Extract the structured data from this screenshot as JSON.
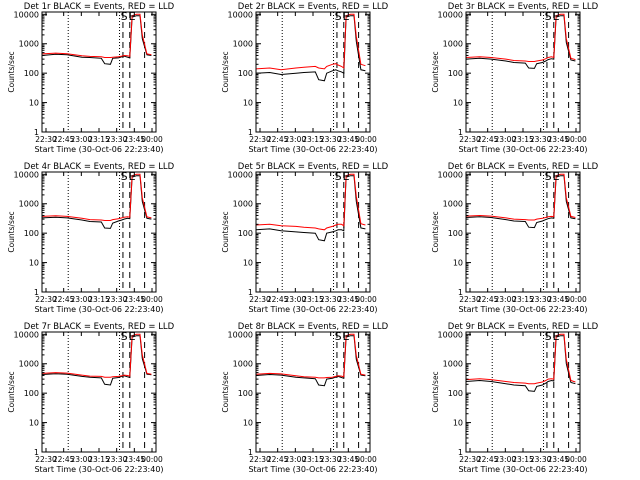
{
  "chart_data": [
    {
      "type": "line",
      "title": "Det 1r BLACK = Events, RED = LLD",
      "xlabel": "Start Time (30-Oct-06 22:23:40)",
      "ylabel": "Counts/sec",
      "x_ticks": [
        "22:30",
        "22:45",
        "23:00",
        "23:15",
        "23:30",
        "23:45",
        "00:00"
      ],
      "y_ticks": [
        "1",
        "10",
        "100",
        "1000",
        "10000"
      ],
      "ylim": [
        1,
        12000
      ],
      "yscale": "log",
      "markers": [
        "S",
        "E"
      ],
      "series": [
        {
          "color": "#000000",
          "x": [
            0,
            0.12,
            0.22,
            0.35,
            0.42,
            0.52,
            0.55,
            0.6,
            0.62,
            0.67,
            0.7,
            0.72,
            0.75,
            0.77,
            0.79,
            0.83,
            0.86,
            0.88,
            0.92,
            0.96
          ],
          "y": [
            400,
            440,
            420,
            350,
            340,
            320,
            210,
            200,
            320,
            330,
            360,
            380,
            350,
            330,
            8000,
            9000,
            9000,
            1500,
            420,
            400
          ]
        },
        {
          "color": "#ff0000",
          "x": [
            0,
            0.12,
            0.22,
            0.35,
            0.42,
            0.52,
            0.55,
            0.6,
            0.62,
            0.67,
            0.7,
            0.72,
            0.75,
            0.77,
            0.79,
            0.83,
            0.86,
            0.88,
            0.92,
            0.96
          ],
          "y": [
            450,
            480,
            460,
            390,
            370,
            360,
            340,
            340,
            350,
            360,
            380,
            400,
            390,
            370,
            9000,
            10000,
            10000,
            2000,
            450,
            420
          ]
        }
      ]
    },
    {
      "type": "line",
      "title": "Det 2r BLACK = Events, RED = LLD",
      "xlabel": "Start Time (30-Oct-06 22:23:40)",
      "ylabel": "Counts/sec",
      "x_ticks": [
        "22:30",
        "22:45",
        "23:00",
        "23:15",
        "23:30",
        "23:45",
        "00:00"
      ],
      "y_ticks": [
        "1",
        "10",
        "100",
        "1000",
        "10000"
      ],
      "ylim": [
        1,
        12000
      ],
      "yscale": "log",
      "markers": [
        "S",
        "E"
      ],
      "series": [
        {
          "color": "#000000",
          "x": [
            0,
            0.12,
            0.22,
            0.35,
            0.42,
            0.52,
            0.55,
            0.6,
            0.62,
            0.67,
            0.7,
            0.72,
            0.75,
            0.77,
            0.79,
            0.83,
            0.86,
            0.88,
            0.92,
            0.96
          ],
          "y": [
            100,
            105,
            90,
            100,
            105,
            110,
            60,
            55,
            100,
            120,
            130,
            120,
            110,
            100,
            8000,
            9000,
            9000,
            1200,
            130,
            120
          ]
        },
        {
          "color": "#ff0000",
          "x": [
            0,
            0.12,
            0.22,
            0.35,
            0.42,
            0.52,
            0.55,
            0.6,
            0.62,
            0.67,
            0.7,
            0.72,
            0.75,
            0.77,
            0.79,
            0.83,
            0.86,
            0.88,
            0.92,
            0.96
          ],
          "y": [
            140,
            150,
            130,
            150,
            160,
            170,
            150,
            140,
            170,
            200,
            210,
            190,
            170,
            150,
            9000,
            10000,
            10000,
            1800,
            200,
            180
          ]
        }
      ]
    },
    {
      "type": "line",
      "title": "Det 3r BLACK = Events, RED = LLD",
      "xlabel": "Start Time (30-Oct-06 22:23:40)",
      "ylabel": "Counts/sec",
      "x_ticks": [
        "22:30",
        "22:45",
        "23:00",
        "23:15",
        "23:30",
        "23:45",
        "00:00"
      ],
      "y_ticks": [
        "1",
        "10",
        "100",
        "1000",
        "10000"
      ],
      "ylim": [
        1,
        12000
      ],
      "yscale": "log",
      "markers": [
        "S",
        "E"
      ],
      "series": [
        {
          "color": "#000000",
          "x": [
            0,
            0.12,
            0.22,
            0.35,
            0.42,
            0.52,
            0.55,
            0.6,
            0.62,
            0.67,
            0.7,
            0.72,
            0.75,
            0.77,
            0.79,
            0.83,
            0.86,
            0.88,
            0.92,
            0.96
          ],
          "y": [
            300,
            320,
            300,
            260,
            230,
            220,
            150,
            145,
            210,
            230,
            260,
            290,
            310,
            300,
            8000,
            9000,
            9000,
            1100,
            280,
            260
          ]
        },
        {
          "color": "#ff0000",
          "x": [
            0,
            0.12,
            0.22,
            0.35,
            0.42,
            0.52,
            0.55,
            0.6,
            0.62,
            0.67,
            0.7,
            0.72,
            0.75,
            0.77,
            0.79,
            0.83,
            0.86,
            0.88,
            0.92,
            0.96
          ],
          "y": [
            340,
            360,
            340,
            300,
            270,
            260,
            250,
            250,
            260,
            280,
            310,
            340,
            360,
            340,
            9000,
            10000,
            10000,
            1500,
            320,
            290
          ]
        }
      ]
    },
    {
      "type": "line",
      "title": "Det 4r BLACK = Events, RED = LLD",
      "xlabel": "Start Time (30-Oct-06 22:23:40)",
      "ylabel": "Counts/sec",
      "x_ticks": [
        "22:30",
        "22:45",
        "23:00",
        "23:15",
        "23:30",
        "23:45",
        "00:00"
      ],
      "y_ticks": [
        "1",
        "10",
        "100",
        "1000",
        "10000"
      ],
      "ylim": [
        1,
        12000
      ],
      "yscale": "log",
      "markers": [
        "S",
        "E"
      ],
      "series": [
        {
          "color": "#000000",
          "x": [
            0,
            0.12,
            0.22,
            0.35,
            0.42,
            0.52,
            0.55,
            0.6,
            0.62,
            0.67,
            0.7,
            0.72,
            0.75,
            0.77,
            0.79,
            0.83,
            0.86,
            0.88,
            0.92,
            0.96
          ],
          "y": [
            330,
            350,
            330,
            280,
            250,
            240,
            150,
            145,
            220,
            260,
            280,
            300,
            320,
            310,
            8000,
            9000,
            9000,
            1200,
            320,
            300
          ]
        },
        {
          "color": "#ff0000",
          "x": [
            0,
            0.12,
            0.22,
            0.35,
            0.42,
            0.52,
            0.55,
            0.6,
            0.62,
            0.67,
            0.7,
            0.72,
            0.75,
            0.77,
            0.79,
            0.83,
            0.86,
            0.88,
            0.92,
            0.96
          ],
          "y": [
            370,
            390,
            370,
            320,
            290,
            280,
            270,
            270,
            290,
            310,
            330,
            350,
            360,
            350,
            9000,
            10000,
            10000,
            1600,
            360,
            330
          ]
        }
      ]
    },
    {
      "type": "line",
      "title": "Det 5r BLACK = Events, RED = LLD",
      "xlabel": "Start Time (30-Oct-06 22:23:40)",
      "ylabel": "Counts/sec",
      "x_ticks": [
        "22:30",
        "22:45",
        "23:00",
        "23:15",
        "23:30",
        "23:45",
        "00:00"
      ],
      "y_ticks": [
        "1",
        "10",
        "100",
        "1000",
        "10000"
      ],
      "ylim": [
        1,
        12000
      ],
      "yscale": "log",
      "markers": [
        "S",
        "E"
      ],
      "series": [
        {
          "color": "#000000",
          "x": [
            0,
            0.12,
            0.22,
            0.35,
            0.42,
            0.52,
            0.55,
            0.6,
            0.62,
            0.67,
            0.7,
            0.72,
            0.75,
            0.77,
            0.79,
            0.83,
            0.86,
            0.88,
            0.92,
            0.96
          ],
          "y": [
            130,
            140,
            120,
            110,
            105,
            100,
            60,
            55,
            100,
            110,
            120,
            130,
            130,
            120,
            8000,
            9000,
            9000,
            1200,
            150,
            140
          ]
        },
        {
          "color": "#ff0000",
          "x": [
            0,
            0.12,
            0.22,
            0.35,
            0.42,
            0.52,
            0.55,
            0.6,
            0.62,
            0.67,
            0.7,
            0.72,
            0.75,
            0.77,
            0.79,
            0.83,
            0.86,
            0.88,
            0.92,
            0.96
          ],
          "y": [
            190,
            200,
            180,
            170,
            160,
            150,
            140,
            130,
            150,
            170,
            190,
            200,
            200,
            180,
            9000,
            10000,
            10000,
            1800,
            210,
            190
          ]
        }
      ]
    },
    {
      "type": "line",
      "title": "Det 6r BLACK = Events, RED = LLD",
      "xlabel": "Start Time (30-Oct-06 22:23:40)",
      "ylabel": "Counts/sec",
      "x_ticks": [
        "22:30",
        "22:45",
        "23:00",
        "23:15",
        "23:30",
        "23:45",
        "00:00"
      ],
      "y_ticks": [
        "1",
        "10",
        "100",
        "1000",
        "10000"
      ],
      "ylim": [
        1,
        12000
      ],
      "yscale": "log",
      "markers": [
        "S",
        "E"
      ],
      "series": [
        {
          "color": "#000000",
          "x": [
            0,
            0.12,
            0.22,
            0.35,
            0.42,
            0.52,
            0.55,
            0.6,
            0.62,
            0.67,
            0.7,
            0.72,
            0.75,
            0.77,
            0.79,
            0.83,
            0.86,
            0.88,
            0.92,
            0.96
          ],
          "y": [
            340,
            360,
            340,
            290,
            260,
            250,
            160,
            155,
            230,
            260,
            290,
            310,
            330,
            320,
            8000,
            9000,
            9000,
            1200,
            330,
            310
          ]
        },
        {
          "color": "#ff0000",
          "x": [
            0,
            0.12,
            0.22,
            0.35,
            0.42,
            0.52,
            0.55,
            0.6,
            0.62,
            0.67,
            0.7,
            0.72,
            0.75,
            0.77,
            0.79,
            0.83,
            0.86,
            0.88,
            0.92,
            0.96
          ],
          "y": [
            380,
            400,
            380,
            330,
            300,
            290,
            280,
            280,
            300,
            320,
            340,
            360,
            370,
            360,
            9000,
            10000,
            10000,
            1600,
            370,
            340
          ]
        }
      ]
    },
    {
      "type": "line",
      "title": "Det 7r BLACK = Events, RED = LLD",
      "xlabel": "Start Time (30-Oct-06 22:23:40)",
      "ylabel": "Counts/sec",
      "x_ticks": [
        "22:30",
        "22:45",
        "23:00",
        "23:15",
        "23:30",
        "23:45",
        "00:00"
      ],
      "y_ticks": [
        "1",
        "10",
        "100",
        "1000",
        "10000"
      ],
      "ylim": [
        1,
        12000
      ],
      "yscale": "log",
      "markers": [
        "S",
        "E"
      ],
      "series": [
        {
          "color": "#000000",
          "x": [
            0,
            0.12,
            0.22,
            0.35,
            0.42,
            0.52,
            0.55,
            0.6,
            0.62,
            0.67,
            0.7,
            0.72,
            0.75,
            0.77,
            0.79,
            0.83,
            0.86,
            0.88,
            0.92,
            0.96
          ],
          "y": [
            430,
            460,
            440,
            370,
            350,
            330,
            200,
            190,
            320,
            340,
            370,
            390,
            360,
            340,
            8000,
            9000,
            9000,
            1500,
            440,
            420
          ]
        },
        {
          "color": "#ff0000",
          "x": [
            0,
            0.12,
            0.22,
            0.35,
            0.42,
            0.52,
            0.55,
            0.6,
            0.62,
            0.67,
            0.7,
            0.72,
            0.75,
            0.77,
            0.79,
            0.83,
            0.86,
            0.88,
            0.92,
            0.96
          ],
          "y": [
            470,
            500,
            480,
            410,
            380,
            370,
            350,
            350,
            360,
            370,
            390,
            410,
            400,
            380,
            9000,
            10000,
            10000,
            2000,
            470,
            440
          ]
        }
      ]
    },
    {
      "type": "line",
      "title": "Det 8r BLACK = Events, RED = LLD",
      "xlabel": "Start Time (30-Oct-06 22:23:40)",
      "ylabel": "Counts/sec",
      "x_ticks": [
        "22:30",
        "22:45",
        "23:00",
        "23:15",
        "23:30",
        "23:45",
        "00:00"
      ],
      "y_ticks": [
        "1",
        "10",
        "100",
        "1000",
        "10000"
      ],
      "ylim": [
        1,
        12000
      ],
      "yscale": "log",
      "markers": [
        "S",
        "E"
      ],
      "series": [
        {
          "color": "#000000",
          "x": [
            0,
            0.12,
            0.22,
            0.35,
            0.42,
            0.52,
            0.55,
            0.6,
            0.62,
            0.67,
            0.7,
            0.72,
            0.75,
            0.77,
            0.79,
            0.83,
            0.86,
            0.88,
            0.92,
            0.96
          ],
          "y": [
            400,
            430,
            410,
            350,
            330,
            310,
            190,
            180,
            300,
            320,
            350,
            370,
            340,
            320,
            8000,
            9000,
            9000,
            1400,
            410,
            390
          ]
        },
        {
          "color": "#ff0000",
          "x": [
            0,
            0.12,
            0.22,
            0.35,
            0.42,
            0.52,
            0.55,
            0.6,
            0.62,
            0.67,
            0.7,
            0.72,
            0.75,
            0.77,
            0.79,
            0.83,
            0.86,
            0.88,
            0.92,
            0.96
          ],
          "y": [
            440,
            470,
            450,
            390,
            360,
            350,
            330,
            330,
            340,
            350,
            370,
            390,
            380,
            360,
            9000,
            10000,
            10000,
            1900,
            440,
            410
          ]
        }
      ]
    },
    {
      "type": "line",
      "title": "Det 9r BLACK = Events, RED = LLD",
      "xlabel": "Start Time (30-Oct-06 22:23:40)",
      "ylabel": "Counts/sec",
      "x_ticks": [
        "22:30",
        "22:45",
        "23:00",
        "23:15",
        "23:30",
        "23:45",
        "00:00"
      ],
      "y_ticks": [
        "1",
        "10",
        "100",
        "1000",
        "10000"
      ],
      "ylim": [
        1,
        12000
      ],
      "yscale": "log",
      "markers": [
        "S",
        "E"
      ],
      "series": [
        {
          "color": "#000000",
          "x": [
            0,
            0.12,
            0.22,
            0.35,
            0.42,
            0.52,
            0.55,
            0.6,
            0.62,
            0.67,
            0.7,
            0.72,
            0.75,
            0.77,
            0.79,
            0.83,
            0.86,
            0.88,
            0.92,
            0.96
          ],
          "y": [
            250,
            270,
            250,
            210,
            190,
            180,
            120,
            115,
            170,
            190,
            220,
            250,
            270,
            260,
            8000,
            9000,
            9000,
            1000,
            230,
            210
          ]
        },
        {
          "color": "#ff0000",
          "x": [
            0,
            0.12,
            0.22,
            0.35,
            0.42,
            0.52,
            0.55,
            0.6,
            0.62,
            0.67,
            0.7,
            0.72,
            0.75,
            0.77,
            0.79,
            0.83,
            0.86,
            0.88,
            0.92,
            0.96
          ],
          "y": [
            290,
            310,
            290,
            250,
            230,
            220,
            210,
            210,
            220,
            240,
            270,
            300,
            310,
            300,
            9000,
            10000,
            10000,
            1400,
            270,
            240
          ]
        }
      ]
    }
  ]
}
